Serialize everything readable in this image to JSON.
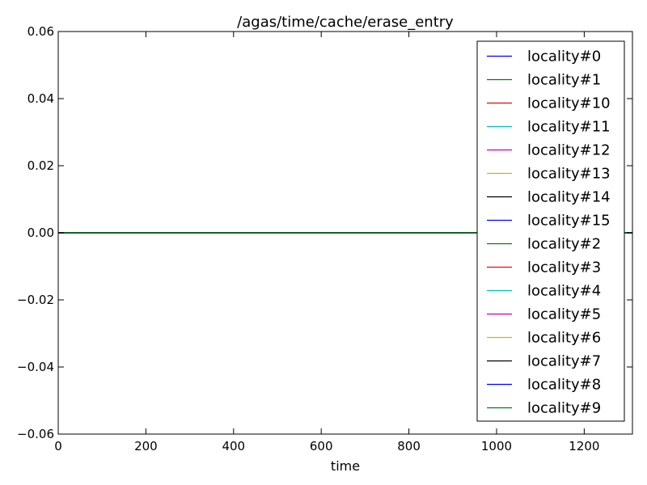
{
  "chart_data": {
    "type": "line",
    "title": "/agas/time/cache/erase_entry",
    "xlabel": "time",
    "ylabel": "",
    "xlim": [
      0,
      1310
    ],
    "ylim": [
      -0.06,
      0.06
    ],
    "x_ticks": [
      0,
      200,
      400,
      600,
      800,
      1000,
      1200
    ],
    "y_ticks": [
      0.06,
      0.04,
      0.02,
      0.0,
      -0.02,
      -0.04,
      -0.06
    ],
    "x_tick_labels": [
      "0",
      "200",
      "400",
      "600",
      "800",
      "1000",
      "1200"
    ],
    "y_tick_labels": [
      "0.06",
      "0.04",
      "0.02",
      "0.00",
      "−0.02",
      "−0.04",
      "−0.06"
    ],
    "grid": false,
    "legend_position": "top-right",
    "x": [
      0,
      1310
    ],
    "series": [
      {
        "name": "locality#0",
        "color": "#0000ff",
        "values": [
          0,
          0
        ]
      },
      {
        "name": "locality#1",
        "color": "#008000",
        "values": [
          0,
          0
        ]
      },
      {
        "name": "locality#10",
        "color": "#ff0000",
        "values": [
          0,
          0
        ]
      },
      {
        "name": "locality#11",
        "color": "#00bfbf",
        "values": [
          0,
          0
        ]
      },
      {
        "name": "locality#12",
        "color": "#bf00bf",
        "values": [
          0,
          0
        ]
      },
      {
        "name": "locality#13",
        "color": "#bfbf00",
        "values": [
          0,
          0
        ]
      },
      {
        "name": "locality#14",
        "color": "#000000",
        "values": [
          0,
          0
        ]
      },
      {
        "name": "locality#15",
        "color": "#0000ff",
        "values": [
          0,
          0
        ]
      },
      {
        "name": "locality#2",
        "color": "#008000",
        "values": [
          0,
          0
        ]
      },
      {
        "name": "locality#3",
        "color": "#ff0000",
        "values": [
          0,
          0
        ]
      },
      {
        "name": "locality#4",
        "color": "#00bfbf",
        "values": [
          0,
          0
        ]
      },
      {
        "name": "locality#5",
        "color": "#bf00bf",
        "values": [
          0,
          0
        ]
      },
      {
        "name": "locality#6",
        "color": "#bfbf00",
        "values": [
          0,
          0
        ]
      },
      {
        "name": "locality#7",
        "color": "#000000",
        "values": [
          0,
          0
        ]
      },
      {
        "name": "locality#8",
        "color": "#0000ff",
        "values": [
          0,
          0
        ]
      },
      {
        "name": "locality#9",
        "color": "#008000",
        "values": [
          0,
          0
        ]
      }
    ]
  }
}
